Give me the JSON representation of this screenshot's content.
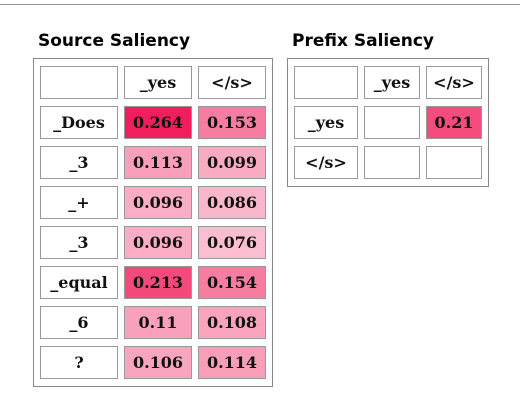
{
  "source": {
    "title": "Source Saliency",
    "columns": [
      "_yes",
      "</s>"
    ],
    "rows": [
      {
        "label": "_Does",
        "values": [
          0.264,
          0.153
        ]
      },
      {
        "label": "_3",
        "values": [
          0.113,
          0.099
        ]
      },
      {
        "label": "_+",
        "values": [
          0.096,
          0.086
        ]
      },
      {
        "label": "_3",
        "values": [
          0.096,
          0.076
        ]
      },
      {
        "label": "_equal",
        "values": [
          0.213,
          0.154
        ]
      },
      {
        "label": "_6",
        "values": [
          0.11,
          0.108
        ]
      },
      {
        "label": "?",
        "values": [
          0.106,
          0.114
        ]
      }
    ]
  },
  "prefix": {
    "title": "Prefix Saliency",
    "columns": [
      "_yes",
      "</s>"
    ],
    "rows": [
      {
        "label": "_yes",
        "values": [
          null,
          0.21
        ]
      },
      {
        "label": "</s>",
        "values": [
          null,
          null
        ]
      }
    ]
  }
}
